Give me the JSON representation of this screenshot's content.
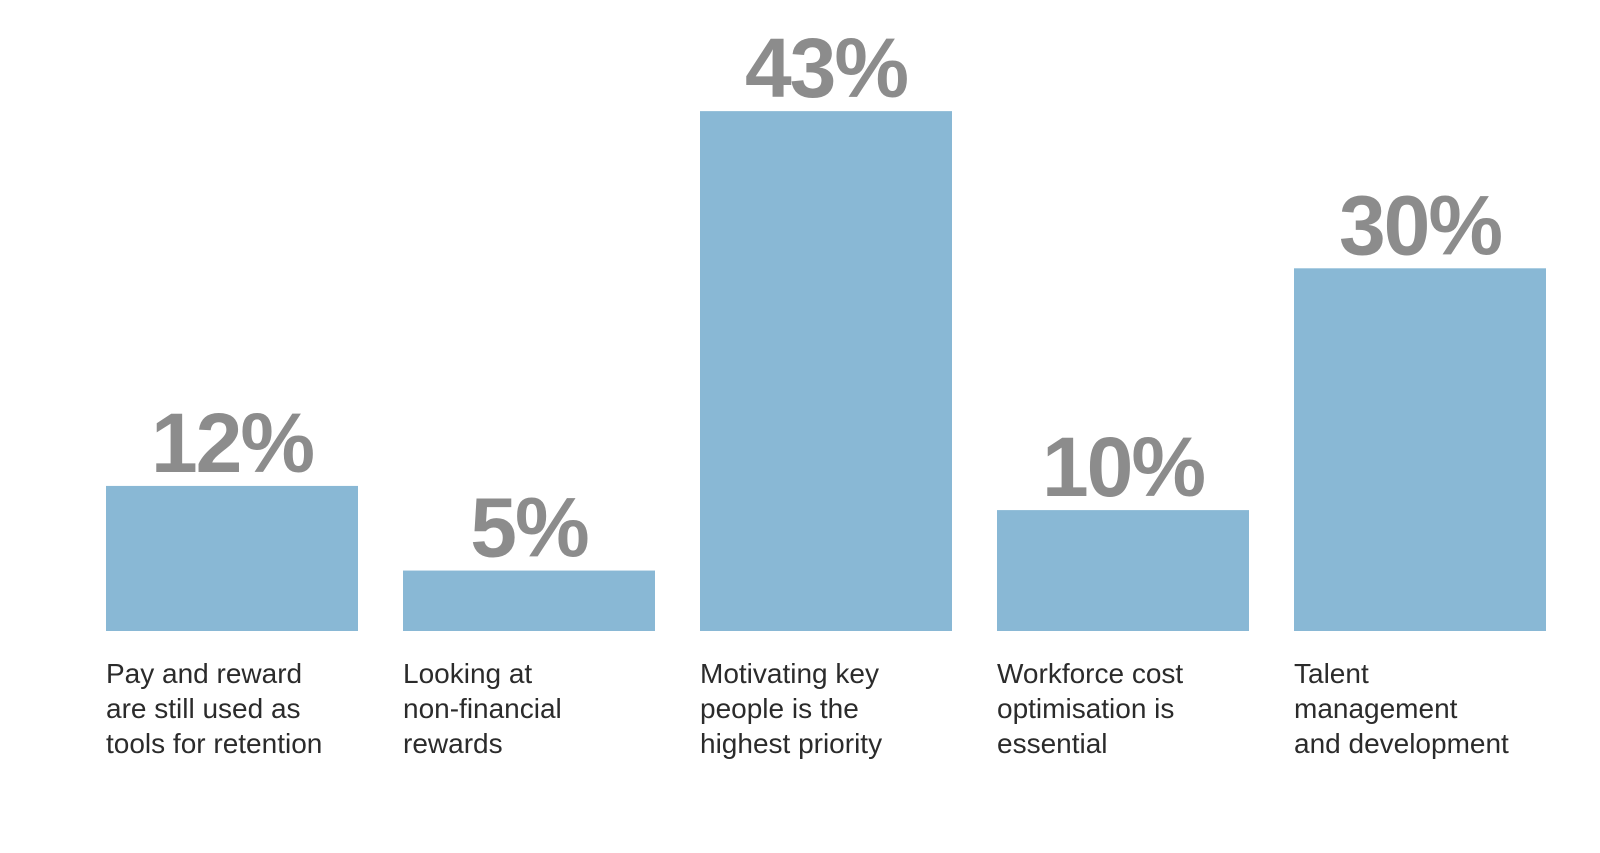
{
  "chart_data": {
    "type": "bar",
    "categories": [
      "Pay and reward\nare still used as\ntools for retention",
      "Looking at\nnon-financial\nrewards",
      "Motivating key\npeople is the\nhighest priority",
      "Workforce cost\noptimisation is\nessential",
      "Talent\nmanagement\nand development"
    ],
    "values": [
      12,
      5,
      43,
      10,
      30
    ],
    "value_labels": [
      "12%",
      "5%",
      "43%",
      "10%",
      "30%"
    ],
    "color": "#89b8d5"
  }
}
